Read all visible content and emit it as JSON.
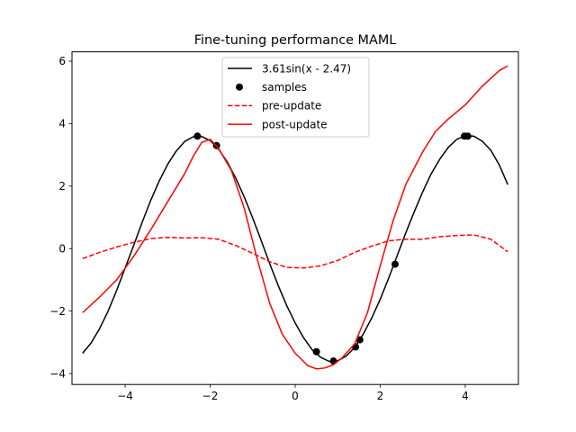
{
  "chart_data": {
    "type": "line",
    "title": "Fine-tuning performance MAML",
    "xlabel": "",
    "ylabel": "",
    "xlim": [
      -5.25,
      5.25
    ],
    "ylim": [
      -4.35,
      6.3
    ],
    "xticks": [
      -4,
      -2,
      0,
      2,
      4
    ],
    "yticks": [
      -4,
      -2,
      0,
      2,
      4,
      6
    ],
    "grid": false,
    "legend_position": "top-center",
    "series": [
      {
        "name": "3.61sin(x - 2.47)",
        "kind": "line",
        "color": "#000000",
        "dash": "solid",
        "x": [
          -5.0,
          -4.8,
          -4.6,
          -4.4,
          -4.2,
          -4.0,
          -3.8,
          -3.6,
          -3.4,
          -3.2,
          -3.0,
          -2.8,
          -2.6,
          -2.4,
          -2.2,
          -2.0,
          -1.8,
          -1.6,
          -1.4,
          -1.2,
          -1.0,
          -0.8,
          -0.6,
          -0.4,
          -0.2,
          0.0,
          0.2,
          0.4,
          0.6,
          0.8,
          1.0,
          1.2,
          1.4,
          1.6,
          1.8,
          2.0,
          2.2,
          2.4,
          2.6,
          2.8,
          3.0,
          3.2,
          3.4,
          3.6,
          3.8,
          4.0,
          4.2,
          4.4,
          4.6,
          4.8,
          5.0
        ],
        "y": [
          -3.35,
          -3.02,
          -2.56,
          -2.0,
          -1.34,
          -0.62,
          0.1,
          0.84,
          1.54,
          2.16,
          2.7,
          3.12,
          3.43,
          3.58,
          3.59,
          3.46,
          3.18,
          2.78,
          2.26,
          1.66,
          0.98,
          0.26,
          -0.48,
          -1.18,
          -1.82,
          -2.38,
          -2.86,
          -3.24,
          -3.48,
          -3.61,
          -3.59,
          -3.44,
          -3.16,
          -2.74,
          -2.22,
          -1.62,
          -0.94,
          -0.22,
          0.5,
          1.18,
          1.82,
          2.4,
          2.86,
          3.24,
          3.5,
          3.61,
          3.6,
          3.44,
          3.15,
          2.68,
          2.05
        ]
      },
      {
        "name": "samples",
        "kind": "scatter",
        "color": "#000000",
        "x": [
          -2.3,
          -1.85,
          0.5,
          0.9,
          1.42,
          1.52,
          2.35,
          3.98,
          4.06
        ],
        "y": [
          3.6,
          3.3,
          -3.3,
          -3.6,
          -3.15,
          -2.92,
          -0.5,
          3.6,
          3.6
        ]
      },
      {
        "name": "pre-update",
        "kind": "line",
        "color": "#ff0000",
        "dash": "dashed",
        "x": [
          -5.0,
          -4.6,
          -4.2,
          -3.8,
          -3.4,
          -3.0,
          -2.6,
          -2.2,
          -1.8,
          -1.4,
          -1.0,
          -0.6,
          -0.2,
          0.2,
          0.6,
          1.0,
          1.4,
          1.8,
          2.2,
          2.6,
          3.0,
          3.4,
          3.8,
          4.2,
          4.6,
          5.0
        ],
        "y": [
          -0.32,
          -0.12,
          0.05,
          0.2,
          0.32,
          0.36,
          0.34,
          0.35,
          0.3,
          0.1,
          -0.15,
          -0.42,
          -0.6,
          -0.62,
          -0.55,
          -0.38,
          -0.12,
          0.08,
          0.25,
          0.3,
          0.3,
          0.38,
          0.42,
          0.44,
          0.3,
          -0.1
        ]
      },
      {
        "name": "post-update",
        "kind": "line",
        "color": "#ff0000",
        "dash": "solid",
        "x": [
          -5.0,
          -4.6,
          -4.2,
          -3.8,
          -3.4,
          -3.0,
          -2.6,
          -2.4,
          -2.2,
          -2.0,
          -1.8,
          -1.5,
          -1.2,
          -0.9,
          -0.6,
          -0.3,
          0.0,
          0.3,
          0.5,
          0.7,
          0.9,
          1.1,
          1.4,
          1.7,
          2.0,
          2.3,
          2.6,
          3.0,
          3.3,
          3.6,
          4.0,
          4.4,
          4.8,
          5.0
        ],
        "y": [
          -2.05,
          -1.55,
          -1.0,
          -0.25,
          0.6,
          1.5,
          2.4,
          2.95,
          3.4,
          3.5,
          3.2,
          2.5,
          1.3,
          -0.3,
          -1.75,
          -2.75,
          -3.35,
          -3.75,
          -3.85,
          -3.82,
          -3.72,
          -3.5,
          -3.05,
          -2.05,
          -0.55,
          0.88,
          2.05,
          3.1,
          3.75,
          4.15,
          4.6,
          5.2,
          5.7,
          5.85
        ]
      }
    ]
  }
}
